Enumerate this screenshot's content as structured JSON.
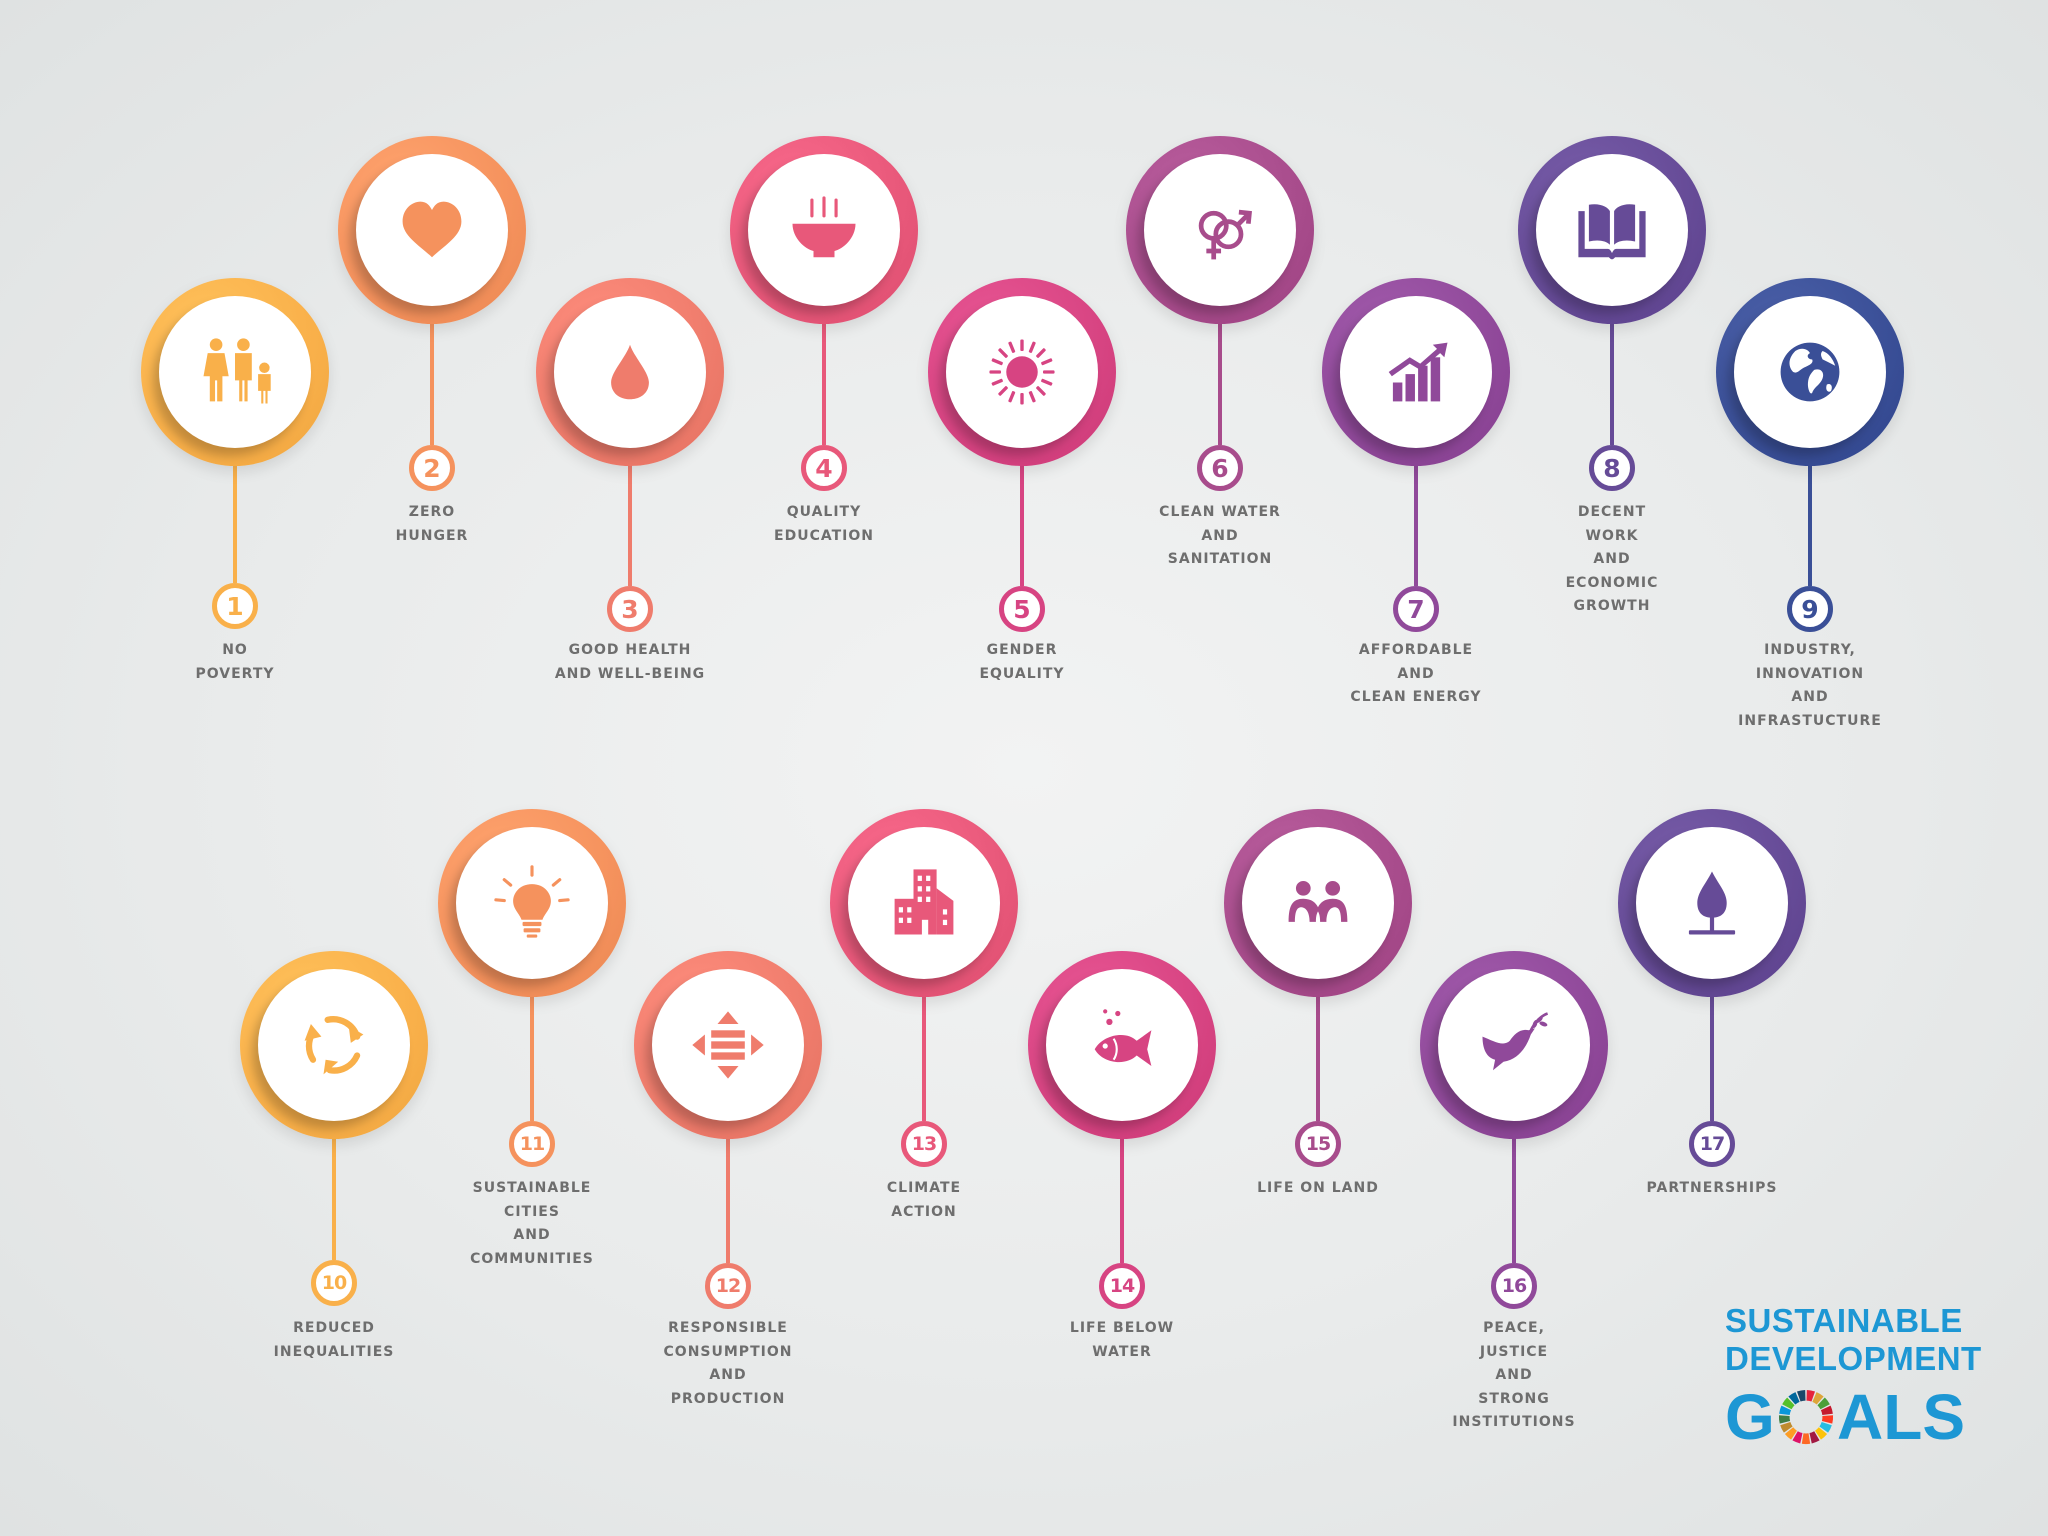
{
  "brand": {
    "line1": "SUSTAINABLE",
    "line2": "DEVELOPMENT",
    "goals_g": "G",
    "goals_rest": "ALS",
    "color": "#1d97d4",
    "wheel_colors": [
      "#e5243b",
      "#dda63a",
      "#4c9f38",
      "#c5192d",
      "#ff3a21",
      "#26bde2",
      "#fcc30b",
      "#a21942",
      "#fd6925",
      "#dd1367",
      "#fd9d24",
      "#bf8b2e",
      "#3f7e44",
      "#0a97d9",
      "#56c02b",
      "#00689d",
      "#19486a"
    ]
  },
  "goals": [
    {
      "number": "1",
      "label": [
        "NO",
        "POVERTY"
      ],
      "icon": "family-icon",
      "color": "#f9b04a"
    },
    {
      "number": "2",
      "label": [
        "ZERO",
        "HUNGER"
      ],
      "icon": "heart-icon",
      "color": "#f5925d"
    },
    {
      "number": "3",
      "label": [
        "GOOD HEALTH",
        "AND WELL-BEING"
      ],
      "icon": "drop-icon",
      "color": "#ef7c6c"
    },
    {
      "number": "4",
      "label": [
        "QUALITY",
        "EDUCATION"
      ],
      "icon": "bowl-icon",
      "color": "#e8587a"
    },
    {
      "number": "5",
      "label": [
        "GENDER",
        "EQUALITY"
      ],
      "icon": "sun-icon",
      "color": "#d74482"
    },
    {
      "number": "6",
      "label": [
        "CLEAN WATER",
        "AND",
        "SANITATION"
      ],
      "icon": "gender-icon",
      "color": "#a84c8c"
    },
    {
      "number": "7",
      "label": [
        "AFFORDABLE",
        "AND",
        "CLEAN ENERGY"
      ],
      "icon": "growth-chart-icon",
      "color": "#90499a"
    },
    {
      "number": "8",
      "label": [
        "DECENT",
        "WORK",
        "AND",
        "ECONOMIC",
        "GROWTH"
      ],
      "icon": "book-icon",
      "color": "#664b97"
    },
    {
      "number": "9",
      "label": [
        "INDUSTRY,",
        "INNOVATION",
        "AND",
        "INFRASTUCTURE"
      ],
      "icon": "globe-icon",
      "color": "#3a4f97"
    },
    {
      "number": "10",
      "label": [
        "REDUCED",
        "INEQUALITIES"
      ],
      "icon": "recycle-icon",
      "color": "#f9b04a"
    },
    {
      "number": "11",
      "label": [
        "SUSTAINABLE",
        "CITIES",
        "AND",
        "COMMUNITIES"
      ],
      "icon": "lightbulb-icon",
      "color": "#f5925d"
    },
    {
      "number": "12",
      "label": [
        "RESPONSIBLE",
        "CONSUMPTION",
        "AND",
        "PRODUCTION"
      ],
      "icon": "arrows-icon",
      "color": "#ef7c6c"
    },
    {
      "number": "13",
      "label": [
        "CLIMATE",
        "ACTION"
      ],
      "icon": "buildings-icon",
      "color": "#e8587a"
    },
    {
      "number": "14",
      "label": [
        "LIFE BELOW",
        "WATER"
      ],
      "icon": "fish-icon",
      "color": "#d74482"
    },
    {
      "number": "15",
      "label": [
        "LIFE ON LAND"
      ],
      "icon": "people-icon",
      "color": "#a84c8c"
    },
    {
      "number": "16",
      "label": [
        "PEACE,",
        "JUSTICE",
        "AND",
        "STRONG",
        "INSTITUTIONS"
      ],
      "icon": "dove-icon",
      "color": "#90499a"
    },
    {
      "number": "17",
      "label": [
        "PARTNERSHIPS"
      ],
      "icon": "tree-icon",
      "color": "#664b97"
    }
  ]
}
